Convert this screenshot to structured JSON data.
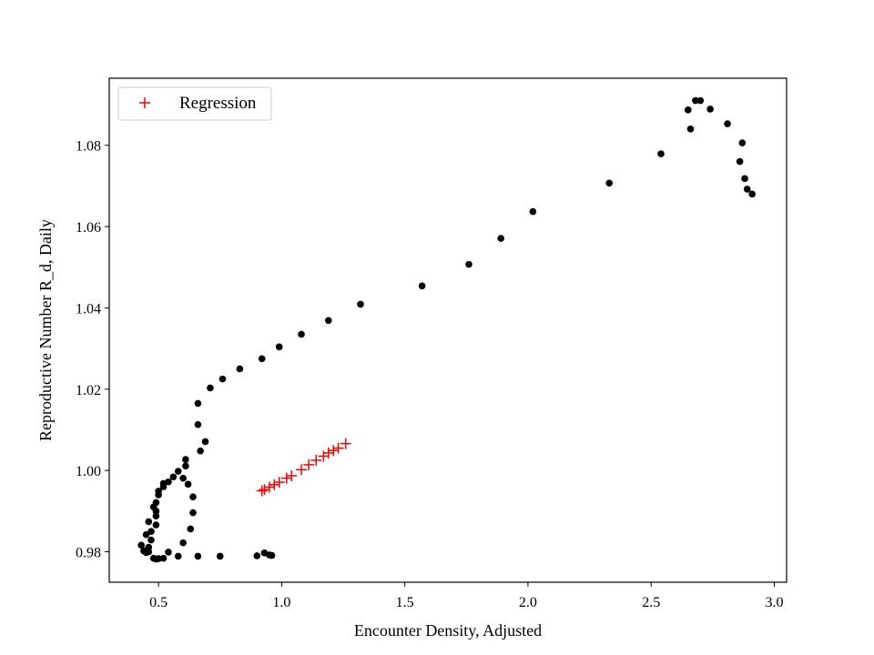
{
  "chart_data": {
    "type": "scatter",
    "title": "",
    "xlabel": "Encounter Density, Adjusted",
    "ylabel": "Reproductive Number R_d, Daily",
    "xlim": [
      0.3,
      3.05
    ],
    "ylim": [
      0.9725,
      1.0965
    ],
    "xticks": [
      0.5,
      1.0,
      1.5,
      2.0,
      2.5,
      3.0
    ],
    "xtick_labels": [
      "0.5",
      "1.0",
      "1.5",
      "2.0",
      "2.5",
      "3.0"
    ],
    "yticks": [
      0.98,
      1.0,
      1.02,
      1.04,
      1.06,
      1.08
    ],
    "ytick_labels": [
      "0.98",
      "1.00",
      "1.02",
      "1.04",
      "1.06",
      "1.08"
    ],
    "grid": false,
    "legend_position": "top-left",
    "series": [
      {
        "marker": "dot",
        "color": "#000000",
        "points": [
          [
            0.43,
            0.9816
          ],
          [
            0.44,
            0.9802
          ],
          [
            0.45,
            0.9798
          ],
          [
            0.46,
            0.98
          ],
          [
            0.46,
            0.9811
          ],
          [
            0.45,
            0.9842
          ],
          [
            0.46,
            0.9874
          ],
          [
            0.47,
            0.9829
          ],
          [
            0.47,
            0.985
          ],
          [
            0.48,
            0.991
          ],
          [
            0.49,
            0.9888
          ],
          [
            0.49,
            0.9866
          ],
          [
            0.49,
            0.99
          ],
          [
            0.49,
            0.9921
          ],
          [
            0.5,
            0.994
          ],
          [
            0.5,
            0.9949
          ],
          [
            0.52,
            0.9968
          ],
          [
            0.52,
            0.996
          ],
          [
            0.54,
            0.9972
          ],
          [
            0.56,
            0.9984
          ],
          [
            0.58,
            0.9998
          ],
          [
            0.6,
            0.9981
          ],
          [
            0.61,
            1.0011
          ],
          [
            0.61,
            1.0027
          ],
          [
            0.62,
            0.9966
          ],
          [
            0.64,
            0.9935
          ],
          [
            0.64,
            0.9896
          ],
          [
            0.63,
            0.9856
          ],
          [
            0.6,
            0.9822
          ],
          [
            0.58,
            0.9789
          ],
          [
            0.54,
            0.9799
          ],
          [
            0.52,
            0.9784
          ],
          [
            0.5,
            0.9783
          ],
          [
            0.49,
            0.9782
          ],
          [
            0.48,
            0.9784
          ],
          [
            0.66,
            0.9789
          ],
          [
            0.75,
            0.9789
          ],
          [
            0.9,
            0.979
          ],
          [
            0.93,
            0.9797
          ],
          [
            0.95,
            0.9792
          ],
          [
            0.96,
            0.9791
          ],
          [
            0.67,
            1.0048
          ],
          [
            0.69,
            1.0071
          ],
          [
            0.66,
            1.0113
          ],
          [
            0.66,
            1.0165
          ],
          [
            0.71,
            1.0203
          ],
          [
            0.76,
            1.0225
          ],
          [
            0.83,
            1.025
          ],
          [
            0.92,
            1.0275
          ],
          [
            0.99,
            1.0304
          ],
          [
            1.08,
            1.0335
          ],
          [
            1.19,
            1.0369
          ],
          [
            1.32,
            1.0409
          ],
          [
            1.57,
            1.0454
          ],
          [
            1.76,
            1.0507
          ],
          [
            1.89,
            1.0571
          ],
          [
            2.02,
            1.0637
          ],
          [
            2.33,
            1.0707
          ],
          [
            2.54,
            1.0779
          ],
          [
            2.66,
            1.084
          ],
          [
            2.65,
            1.0887
          ],
          [
            2.68,
            1.091
          ],
          [
            2.7,
            1.091
          ],
          [
            2.74,
            1.0889
          ],
          [
            2.81,
            1.0853
          ],
          [
            2.87,
            1.0806
          ],
          [
            2.86,
            1.076
          ],
          [
            2.88,
            1.0718
          ],
          [
            2.89,
            1.0692
          ],
          [
            2.91,
            1.068
          ]
        ]
      },
      {
        "name": "Regression",
        "marker": "plus",
        "color": "#ff0000",
        "points": [
          [
            0.92,
            0.995
          ],
          [
            0.93,
            0.9953
          ],
          [
            0.95,
            0.9959
          ],
          [
            0.97,
            0.9965
          ],
          [
            0.99,
            0.9971
          ],
          [
            1.02,
            0.9981
          ],
          [
            1.04,
            0.9987
          ],
          [
            1.08,
            1.0002
          ],
          [
            1.11,
            1.0014
          ],
          [
            1.14,
            1.0025
          ],
          [
            1.17,
            1.0035
          ],
          [
            1.19,
            1.0043
          ],
          [
            1.21,
            1.0049
          ],
          [
            1.23,
            1.0055
          ],
          [
            1.26,
            1.0066
          ]
        ]
      }
    ]
  }
}
